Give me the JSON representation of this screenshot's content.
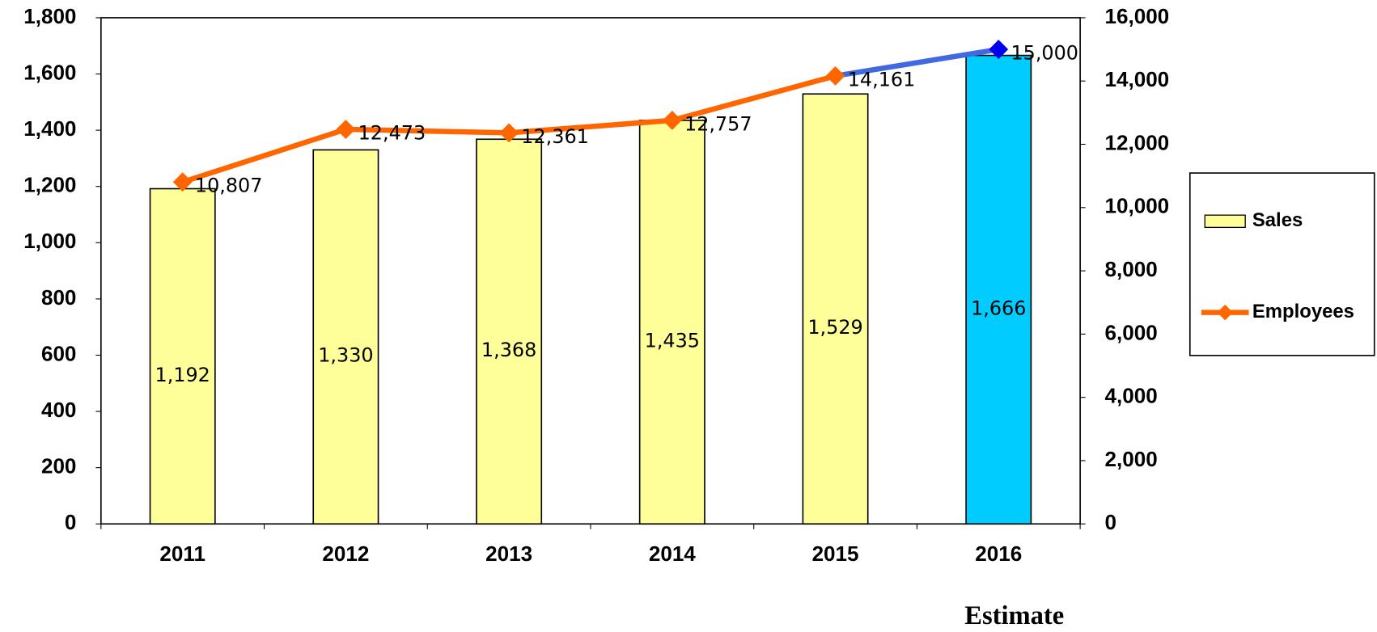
{
  "chart_data": {
    "type": "bar_line",
    "categories": [
      "2011",
      "2012",
      "2013",
      "2014",
      "2015",
      "2016"
    ],
    "series": [
      {
        "name": "Sales",
        "type": "bar",
        "axis": "y",
        "color": "#ffff99",
        "colors": [
          "#ffff99",
          "#ffff99",
          "#ffff99",
          "#ffff99",
          "#ffff99",
          "#00ccff"
        ],
        "values": [
          1192,
          1330,
          1368,
          1435,
          1529,
          1666
        ],
        "value_labels": [
          "1,192",
          "1,330",
          "1,368",
          "1,435",
          "1,529",
          "1,666"
        ]
      },
      {
        "name": "Employees",
        "type": "line",
        "axis": "y2",
        "color": "#ff6600",
        "point_colors": [
          "#ff6600",
          "#ff6600",
          "#ff6600",
          "#ff6600",
          "#ff6600",
          "#0000ee"
        ],
        "segment_colors": [
          "#ff6600",
          "#ff6600",
          "#ff6600",
          "#ff6600",
          "#4169e1"
        ],
        "values": [
          10807,
          12473,
          12361,
          12757,
          14161,
          15000
        ],
        "value_labels": [
          "10,807",
          "12,473",
          "12,361",
          "12,757",
          "14,161",
          "15,000"
        ]
      }
    ],
    "ylim": [
      0,
      1800
    ],
    "yticks": [
      0,
      200,
      400,
      600,
      800,
      {
        "value": 1000,
        "label": "1,000"
      },
      {
        "value": 1200,
        "label": "1,200"
      },
      {
        "value": 1400,
        "label": "1,400"
      },
      {
        "value": 1600,
        "label": "1,600"
      },
      {
        "value": 1800,
        "label": "1,800"
      }
    ],
    "y2lim": [
      0,
      16000
    ],
    "y2ticks": [
      0,
      {
        "value": 2000,
        "label": "2,000"
      },
      {
        "value": 4000,
        "label": "4,000"
      },
      {
        "value": 6000,
        "label": "6,000"
      },
      {
        "value": 8000,
        "label": "8,000"
      },
      {
        "value": 10000,
        "label": "10,000"
      },
      {
        "value": 12000,
        "label": "12,000"
      },
      {
        "value": 14000,
        "label": "14,000"
      },
      {
        "value": 16000,
        "label": "16,000"
      }
    ],
    "annotation": "Estimate",
    "legend": "right",
    "grid": false
  }
}
